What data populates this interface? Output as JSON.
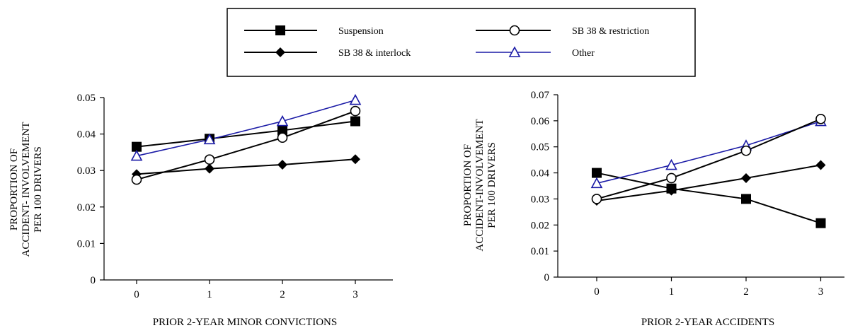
{
  "legend": {
    "items": [
      {
        "label": "Suspension",
        "marker": "square-filled",
        "color": "#000000"
      },
      {
        "label": "SB 38 & restriction",
        "marker": "circle-open",
        "color": "#000000"
      },
      {
        "label": "SB 38 & interlock",
        "marker": "diamond-filled",
        "color": "#000000"
      },
      {
        "label": "Other",
        "marker": "triangle-open",
        "color": "#1a1aa6"
      }
    ]
  },
  "chart_data": [
    {
      "type": "line",
      "xlabel": "PRIOR 2-YEAR MINOR CONVICTIONS",
      "ylabel_lines": [
        "PROPORTION OF",
        "ACCIDENT- INVOLVEMENT",
        "PER 100 DRIVERS"
      ],
      "x": [
        0,
        1,
        2,
        3
      ],
      "xtick_labels": [
        "0",
        "1",
        "2",
        "3"
      ],
      "ylim": [
        0,
        0.05
      ],
      "ytick_labels": [
        "0",
        "0.01",
        "0.02",
        "0.03",
        "0.04",
        "0.05"
      ],
      "series": [
        {
          "name": "Suspension",
          "values": [
            0.0365,
            0.0387,
            0.041,
            0.0435
          ]
        },
        {
          "name": "SB 38 & restriction",
          "values": [
            0.0275,
            0.033,
            0.039,
            0.0463
          ]
        },
        {
          "name": "SB 38 & interlock",
          "values": [
            0.029,
            0.0305,
            0.0316,
            0.0331
          ]
        },
        {
          "name": "Other",
          "values": [
            0.034,
            0.0385,
            0.0435,
            0.0493
          ]
        }
      ]
    },
    {
      "type": "line",
      "xlabel": "PRIOR 2-YEAR ACCIDENTS",
      "ylabel_lines": [
        "PROPORTION OF",
        "ACCIDENT-INVOLVEMENT",
        "PER 100 DRIVERS"
      ],
      "x": [
        0,
        1,
        2,
        3
      ],
      "xtick_labels": [
        "0",
        "1",
        "2",
        "3"
      ],
      "ylim": [
        0,
        0.07
      ],
      "ytick_labels": [
        "0",
        "0.01",
        "0.02",
        "0.03",
        "0.04",
        "0.05",
        "0.06",
        "0.07"
      ],
      "series": [
        {
          "name": "Suspension",
          "values": [
            0.04,
            0.034,
            0.03,
            0.0207
          ]
        },
        {
          "name": "SB 38 & restriction",
          "values": [
            0.03,
            0.038,
            0.0485,
            0.0607
          ]
        },
        {
          "name": "SB 38 & interlock",
          "values": [
            0.0293,
            0.0332,
            0.038,
            0.043
          ]
        },
        {
          "name": "Other",
          "values": [
            0.036,
            0.043,
            0.0505,
            0.0598
          ]
        }
      ]
    }
  ]
}
